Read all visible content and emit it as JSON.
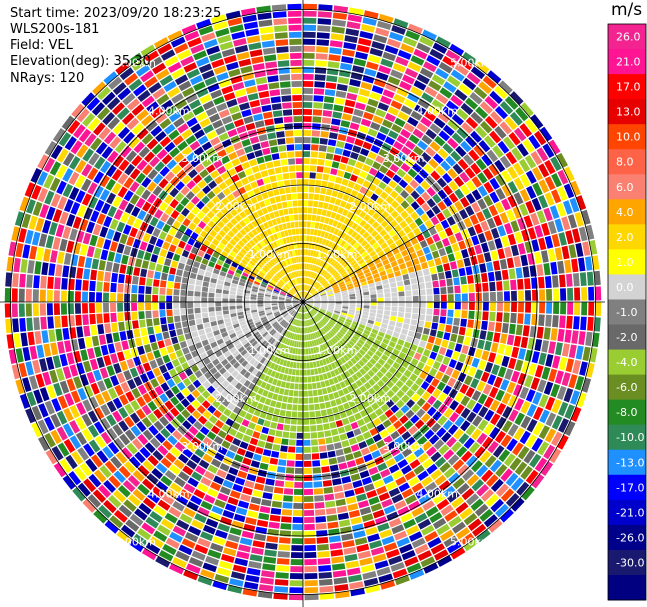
{
  "header": {
    "start_time": "Start time: 2023/09/20 18:23:25",
    "site": "WLS200s-181",
    "field": "Field: VEL",
    "elevation": "Elevation(deg): 35.30",
    "nrays": "NRays: 120"
  },
  "chart_data": {
    "type": "heatmap",
    "projection": "polar-ppi",
    "field": "VEL",
    "units": "m/s",
    "nrays": 120,
    "range_rings_km": [
      1,
      2,
      3,
      4,
      5
    ],
    "ring_labels": [
      "1.00km",
      "2.00km",
      "3.00km",
      "4.00km",
      "5.00km"
    ],
    "colorbar": {
      "title": "m/s",
      "ticks": [
        "26.0",
        "21.0",
        "17.0",
        "13.0",
        "10.0",
        "8.0",
        "6.0",
        "4.0",
        "2.0",
        "1.0",
        "0.0",
        "-1.0",
        "-2.0",
        "-4.0",
        "-6.0",
        "-8.0",
        "-10.0",
        "-13.0",
        "-17.0",
        "-21.0",
        "-26.0",
        "-30.0"
      ],
      "colors": [
        "#f3238f",
        "#ff1493",
        "#ff0000",
        "#e60000",
        "#ff4500",
        "#ff6347",
        "#fa8072",
        "#ffa500",
        "#ffd700",
        "#ffff00",
        "#d3d3d3",
        "#808080",
        "#696969",
        "#9acd32",
        "#6b8e23",
        "#228b22",
        "#2e8b57",
        "#1e90ff",
        "#0000ff",
        "#0000cd",
        "#00008b",
        "#191970",
        "#000080"
      ]
    },
    "sector_summary": [
      {
        "azimuth_range_deg": [
          300,
          60
        ],
        "range_km": [
          0,
          2.5
        ],
        "velocity_ms": 2.5
      },
      {
        "azimuth_range_deg": [
          15,
          75
        ],
        "range_km": [
          0.5,
          2.2
        ],
        "velocity_ms": 4.5
      },
      {
        "azimuth_range_deg": [
          210,
          290
        ],
        "range_km": [
          0,
          2.2
        ],
        "velocity_ms": 0.0
      },
      {
        "azimuth_range_deg": [
          60,
          110
        ],
        "range_km": [
          0,
          2.2
        ],
        "velocity_ms": 0.5
      },
      {
        "azimuth_range_deg": [
          110,
          250
        ],
        "range_km": [
          0,
          2.5
        ],
        "velocity_ms": -3.0
      },
      {
        "azimuth_range_deg": [
          0,
          360
        ],
        "range_km": [
          2.5,
          5.5
        ],
        "velocity_ms": null
      }
    ]
  }
}
